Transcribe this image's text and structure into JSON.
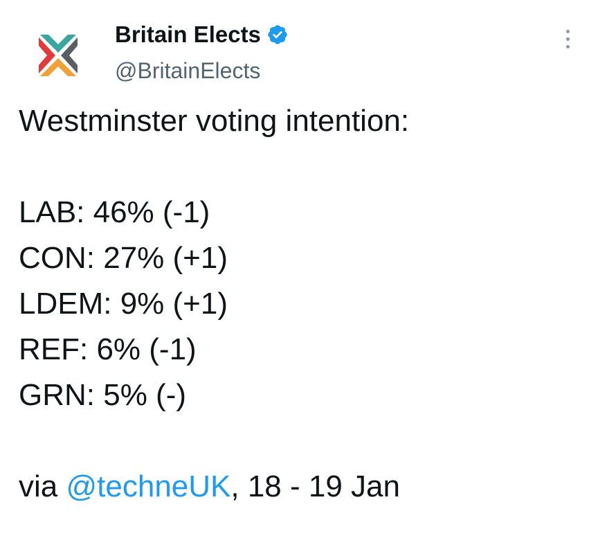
{
  "account": {
    "display_name": "Britain Elects",
    "handle": "@BritainElects",
    "verified": true,
    "avatar_icon": "britain-elects-logo-icon",
    "logo_colors": {
      "teal": "#3aa6a0",
      "red": "#e03a3a",
      "grey": "#5a5f66",
      "orange": "#f0a13a"
    }
  },
  "menu": {
    "icon": "more-vertical-icon"
  },
  "tweet": {
    "heading": "Westminster voting intention:",
    "results": [
      "LAB: 46% (-1)",
      "CON: 27% (+1)",
      "LDEM: 9% (+1)",
      "REF: 6% (-1)",
      "GRN: 5% (-)"
    ],
    "source_prefix": "via ",
    "source_mention": "@techneUK",
    "source_suffix": ", 18 - 19 Jan"
  },
  "colors": {
    "text": "#0f1419",
    "secondary": "#536471",
    "link": "#1d9bf0",
    "verified": "#1d9bf0"
  }
}
